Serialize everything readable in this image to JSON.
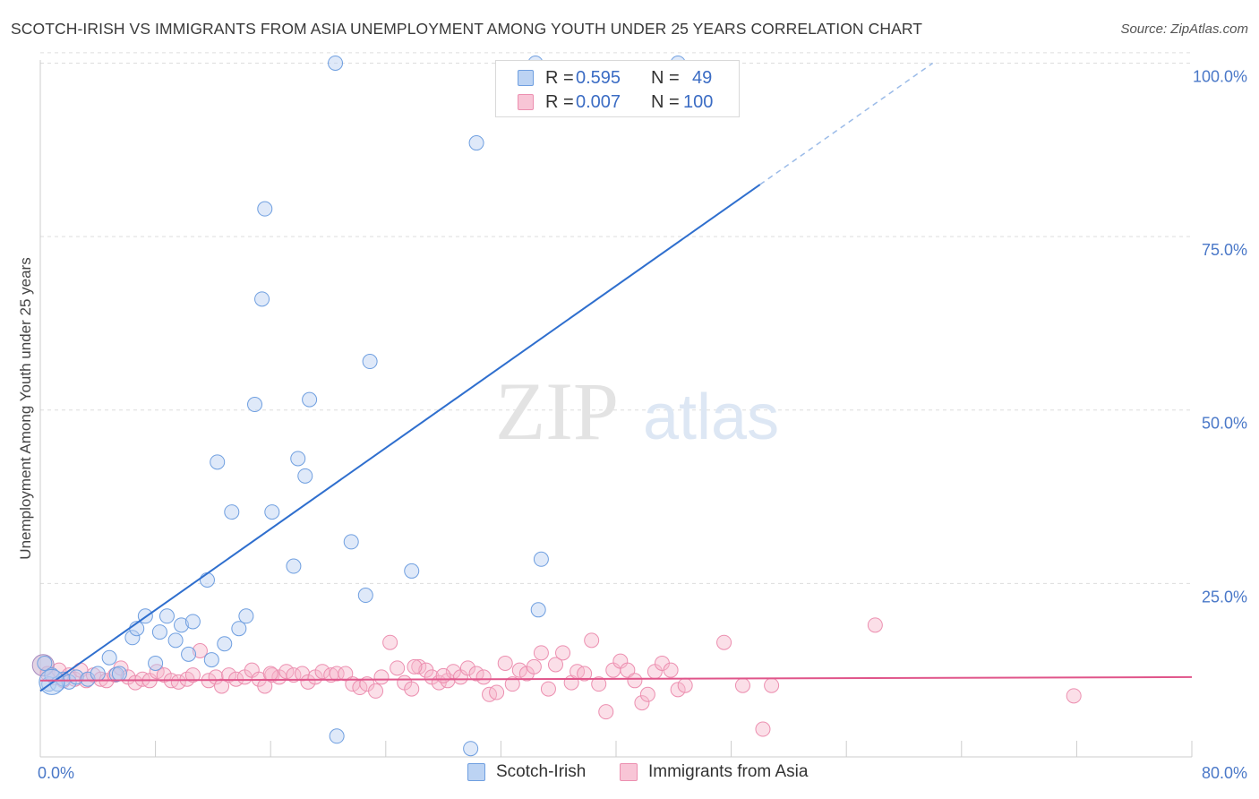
{
  "header": {
    "title": "SCOTCH-IRISH VS IMMIGRANTS FROM ASIA UNEMPLOYMENT AMONG YOUTH UNDER 25 YEARS CORRELATION CHART",
    "source": "Source: ZipAtlas.com"
  },
  "watermark": {
    "zip": "ZIP",
    "atlas": "atlas"
  },
  "legend": {
    "rows": [
      {
        "r_key": "R =",
        "r_value": "0.595",
        "n_key": "N =",
        "n_value": "49"
      },
      {
        "r_key": "R =",
        "r_value": "0.007",
        "n_key": "N =",
        "n_value": "100"
      }
    ]
  },
  "chart_data": {
    "type": "scatter",
    "title": "SCOTCH-IRISH VS IMMIGRANTS FROM ASIA UNEMPLOYMENT AMONG YOUTH UNDER 25 YEARS CORRELATION CHART",
    "xlabel": "",
    "ylabel": "Unemployment Among Youth under 25 years",
    "xlim": [
      0,
      80
    ],
    "ylim": [
      0,
      102
    ],
    "x_tick_labels": [
      "0.0%",
      "80.0%"
    ],
    "y_ticks": [
      25,
      50,
      75,
      100
    ],
    "y_tick_labels": [
      "25.0%",
      "50.0%",
      "75.0%",
      "100.0%"
    ],
    "grid": "horizontal dashed",
    "legend_position": "top-center and bottom",
    "colors": {
      "scotch_irish": "#6f9fe0",
      "asia": "#ec8fb0",
      "scotch_irish_line": "#2f6fce",
      "asia_line": "#e0558a",
      "tick_text": "#4a78c8"
    },
    "series": [
      {
        "name": "Scotch-Irish",
        "R": 0.595,
        "N": 49,
        "trend": {
          "x": [
            0,
            50
          ],
          "y": [
            9.5,
            82.5
          ],
          "dashed_extension_to": [
            62,
            100
          ]
        },
        "points": [
          [
            0.3,
            13.5
          ],
          [
            0.6,
            10.5
          ],
          [
            0.8,
            11.8
          ],
          [
            1.2,
            10.5
          ],
          [
            1.6,
            11.2
          ],
          [
            2.0,
            10.8
          ],
          [
            2.5,
            11.5
          ],
          [
            3.3,
            11.2
          ],
          [
            4.0,
            12.0
          ],
          [
            4.8,
            14.3
          ],
          [
            5.3,
            11.9
          ],
          [
            5.5,
            12.0
          ],
          [
            6.4,
            17.2
          ],
          [
            6.7,
            18.5
          ],
          [
            7.3,
            20.3
          ],
          [
            8.0,
            13.5
          ],
          [
            8.3,
            18.0
          ],
          [
            8.8,
            20.3
          ],
          [
            9.4,
            16.8
          ],
          [
            9.8,
            19.0
          ],
          [
            10.3,
            14.8
          ],
          [
            10.6,
            19.5
          ],
          [
            11.6,
            25.5
          ],
          [
            11.9,
            14.0
          ],
          [
            12.3,
            42.5
          ],
          [
            12.8,
            16.3
          ],
          [
            13.3,
            35.3
          ],
          [
            13.8,
            18.5
          ],
          [
            14.3,
            20.3
          ],
          [
            14.9,
            50.8
          ],
          [
            15.4,
            66.0
          ],
          [
            15.6,
            79.0
          ],
          [
            16.1,
            35.3
          ],
          [
            17.6,
            27.5
          ],
          [
            17.9,
            43.0
          ],
          [
            18.4,
            40.5
          ],
          [
            18.7,
            51.5
          ],
          [
            20.5,
            100.0
          ],
          [
            20.6,
            3.0
          ],
          [
            21.6,
            31.0
          ],
          [
            22.6,
            23.3
          ],
          [
            22.9,
            57.0
          ],
          [
            25.8,
            26.8
          ],
          [
            29.9,
            1.2
          ],
          [
            30.3,
            88.5
          ],
          [
            34.6,
            21.2
          ],
          [
            34.8,
            28.5
          ],
          [
            34.4,
            100.0
          ],
          [
            44.3,
            100.0
          ]
        ]
      },
      {
        "name": "Immigrants from Asia",
        "R": 0.007,
        "N": 100,
        "trend": {
          "x": [
            0,
            80
          ],
          "y": [
            11.0,
            11.5
          ]
        },
        "points": [
          [
            0.5,
            12.0
          ],
          [
            1.0,
            11.4
          ],
          [
            1.3,
            12.5
          ],
          [
            1.6,
            11.0
          ],
          [
            2.0,
            11.8
          ],
          [
            2.4,
            11.2
          ],
          [
            2.8,
            12.5
          ],
          [
            3.2,
            11.0
          ],
          [
            3.7,
            11.8
          ],
          [
            4.2,
            11.2
          ],
          [
            4.6,
            11.0
          ],
          [
            5.2,
            11.8
          ],
          [
            5.6,
            12.8
          ],
          [
            6.1,
            11.5
          ],
          [
            6.6,
            10.7
          ],
          [
            7.1,
            11.2
          ],
          [
            7.6,
            11.0
          ],
          [
            8.1,
            12.3
          ],
          [
            8.6,
            11.8
          ],
          [
            9.1,
            11.0
          ],
          [
            9.6,
            10.8
          ],
          [
            10.2,
            11.2
          ],
          [
            10.6,
            11.8
          ],
          [
            11.1,
            15.3
          ],
          [
            11.7,
            11.0
          ],
          [
            12.2,
            11.5
          ],
          [
            12.6,
            10.2
          ],
          [
            13.1,
            11.8
          ],
          [
            13.6,
            11.2
          ],
          [
            14.2,
            11.5
          ],
          [
            14.7,
            12.5
          ],
          [
            15.2,
            11.2
          ],
          [
            15.6,
            10.2
          ],
          [
            16.1,
            11.8
          ],
          [
            16.6,
            11.5
          ],
          [
            17.1,
            12.3
          ],
          [
            17.6,
            11.8
          ],
          [
            18.2,
            12.0
          ],
          [
            18.6,
            10.8
          ],
          [
            19.1,
            11.5
          ],
          [
            19.6,
            12.3
          ],
          [
            20.2,
            11.8
          ],
          [
            20.6,
            12.0
          ],
          [
            21.2,
            12.0
          ],
          [
            21.7,
            10.5
          ],
          [
            22.2,
            10.0
          ],
          [
            22.7,
            10.5
          ],
          [
            23.3,
            9.5
          ],
          [
            23.7,
            11.5
          ],
          [
            24.3,
            16.5
          ],
          [
            24.8,
            12.8
          ],
          [
            25.3,
            10.7
          ],
          [
            25.8,
            9.8
          ],
          [
            26.3,
            13.0
          ],
          [
            26.8,
            12.5
          ],
          [
            27.2,
            11.5
          ],
          [
            27.7,
            10.7
          ],
          [
            28.3,
            11.0
          ],
          [
            28.7,
            12.3
          ],
          [
            29.2,
            11.5
          ],
          [
            29.7,
            12.8
          ],
          [
            30.3,
            12.0
          ],
          [
            30.8,
            11.5
          ],
          [
            31.2,
            9.0
          ],
          [
            31.7,
            9.3
          ],
          [
            32.3,
            13.5
          ],
          [
            32.8,
            10.5
          ],
          [
            33.3,
            12.5
          ],
          [
            33.8,
            12.0
          ],
          [
            34.3,
            13.0
          ],
          [
            34.8,
            15.0
          ],
          [
            35.3,
            9.8
          ],
          [
            35.8,
            13.3
          ],
          [
            36.3,
            15.0
          ],
          [
            36.9,
            10.7
          ],
          [
            37.3,
            12.3
          ],
          [
            37.8,
            12.0
          ],
          [
            38.3,
            16.8
          ],
          [
            38.8,
            10.5
          ],
          [
            39.3,
            6.5
          ],
          [
            39.8,
            12.5
          ],
          [
            40.3,
            13.8
          ],
          [
            40.8,
            12.5
          ],
          [
            41.3,
            11.0
          ],
          [
            41.8,
            7.8
          ],
          [
            42.2,
            9.0
          ],
          [
            42.7,
            12.3
          ],
          [
            43.2,
            13.5
          ],
          [
            43.8,
            12.5
          ],
          [
            44.3,
            9.7
          ],
          [
            44.8,
            10.3
          ],
          [
            47.5,
            16.5
          ],
          [
            48.8,
            10.3
          ],
          [
            50.2,
            4.0
          ],
          [
            50.8,
            10.3
          ],
          [
            58.0,
            19.0
          ],
          [
            71.8,
            8.8
          ],
          [
            26.0,
            13.0
          ],
          [
            28.0,
            11.7
          ],
          [
            16.0,
            12.0
          ]
        ]
      }
    ]
  },
  "bottom_legend": {
    "items": [
      {
        "label": "Scotch-Irish"
      },
      {
        "label": "Immigrants from Asia"
      }
    ]
  }
}
